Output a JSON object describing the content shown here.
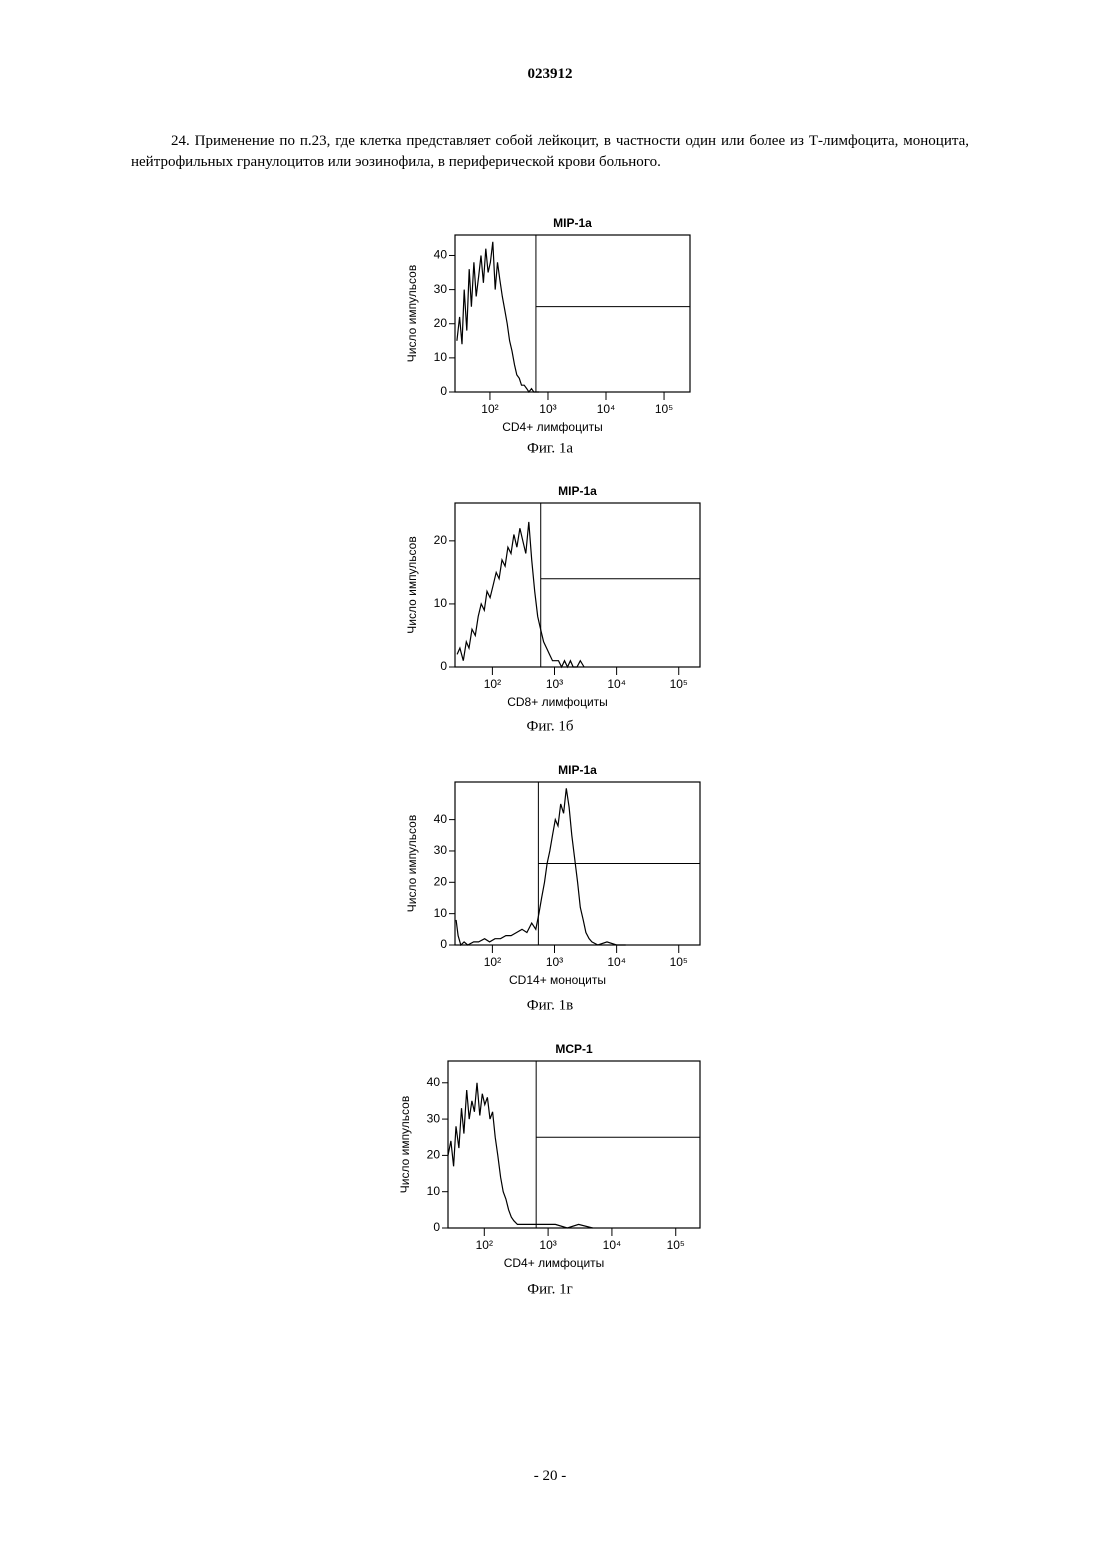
{
  "header": {
    "number": "023912"
  },
  "paragraph": "24. Применение по п.23, где клетка представляет собой лейкоцит, в частности один или более из Т-лимфоцита, моноцита, нейтрофильных гранулоцитов или эозинофила, в периферической крови больного.",
  "chart_data": [
    {
      "type": "line",
      "title": "MIP-1a",
      "x_label": "CD4+ лимфоциты",
      "y_label": "Число импульсов",
      "caption": "Фиг. 1а",
      "x_scale": "log",
      "xlim": [
        25,
        280000
      ],
      "ylim": [
        0,
        46
      ],
      "color": "#000000",
      "xticks": [
        {
          "value": 100,
          "label": "10²"
        },
        {
          "value": 1000,
          "label": "10³"
        },
        {
          "value": 10000,
          "label": "10⁴"
        },
        {
          "value": 100000,
          "label": "10⁵"
        }
      ],
      "yticks": [
        0,
        10,
        20,
        30,
        40
      ],
      "gate": {
        "x": 620,
        "y": 25
      },
      "x": [
        27,
        30,
        33,
        36,
        40,
        44,
        48,
        53,
        58,
        64,
        70,
        77,
        85,
        93,
        102,
        112,
        123,
        135,
        148,
        163,
        180,
        198,
        218,
        240,
        265,
        290,
        320,
        350,
        390,
        430,
        470,
        520,
        570,
        630,
        700
      ],
      "values": [
        15,
        22,
        14,
        30,
        18,
        36,
        25,
        38,
        28,
        34,
        40,
        32,
        42,
        35,
        38,
        44,
        30,
        38,
        33,
        28,
        24,
        20,
        15,
        12,
        8,
        5,
        4,
        2,
        2,
        1,
        0,
        1,
        0,
        0,
        0
      ]
    },
    {
      "type": "line",
      "title": "MIP-1a",
      "x_label": "CD8+ лимфоциты",
      "y_label": "Число импульсов",
      "caption": "Фиг. 1б",
      "x_scale": "log",
      "xlim": [
        25,
        220000
      ],
      "ylim": [
        0,
        26
      ],
      "color": "#000000",
      "xticks": [
        {
          "value": 100,
          "label": "10²"
        },
        {
          "value": 1000,
          "label": "10³"
        },
        {
          "value": 10000,
          "label": "10⁴"
        },
        {
          "value": 100000,
          "label": "10⁵"
        }
      ],
      "yticks": [
        0,
        10,
        20
      ],
      "gate": {
        "x": 600,
        "y": 14
      },
      "x": [
        27,
        30,
        34,
        38,
        42,
        47,
        53,
        59,
        66,
        74,
        82,
        92,
        103,
        115,
        128,
        143,
        160,
        178,
        199,
        222,
        248,
        277,
        309,
        345,
        385,
        430,
        480,
        536,
        598,
        667,
        745,
        830,
        930,
        1040,
        1160,
        1300,
        1450,
        1620,
        1800,
        2000,
        2300,
        2600,
        3000
      ],
      "values": [
        2,
        3,
        1,
        4,
        3,
        6,
        5,
        8,
        10,
        9,
        12,
        11,
        13,
        15,
        14,
        17,
        16,
        19,
        18,
        21,
        19,
        22,
        20,
        18,
        23,
        17,
        12,
        8,
        6,
        4,
        3,
        2,
        1,
        1,
        1,
        0,
        1,
        0,
        1,
        0,
        0,
        1,
        0
      ]
    },
    {
      "type": "line",
      "title": "MIP-1a",
      "x_label": "CD14+ моноциты",
      "y_label": "Число импульсов",
      "caption": "Фиг. 1в",
      "x_scale": "log",
      "xlim": [
        25,
        220000
      ],
      "ylim": [
        0,
        52
      ],
      "color": "#000000",
      "xticks": [
        {
          "value": 100,
          "label": "10²"
        },
        {
          "value": 1000,
          "label": "10³"
        },
        {
          "value": 10000,
          "label": "10⁴"
        },
        {
          "value": 100000,
          "label": "10⁵"
        }
      ],
      "yticks": [
        0,
        10,
        20,
        30,
        40
      ],
      "gate": {
        "x": 550,
        "y": 26
      },
      "x": [
        26,
        28,
        31,
        35,
        40,
        50,
        60,
        75,
        90,
        110,
        135,
        165,
        200,
        245,
        300,
        360,
        430,
        500,
        560,
        620,
        690,
        760,
        840,
        930,
        1030,
        1140,
        1260,
        1400,
        1550,
        1720,
        1900,
        2100,
        2350,
        2600,
        2900,
        3200,
        3600,
        4000,
        5000,
        7000,
        10000,
        14000
      ],
      "values": [
        8,
        3,
        0,
        1,
        0,
        1,
        1,
        2,
        1,
        2,
        2,
        3,
        3,
        4,
        5,
        4,
        7,
        5,
        10,
        15,
        20,
        26,
        30,
        35,
        40,
        38,
        45,
        42,
        50,
        44,
        35,
        28,
        20,
        12,
        8,
        4,
        2,
        1,
        0,
        1,
        0,
        0
      ]
    },
    {
      "type": "line",
      "title": "MCP-1",
      "x_label": "CD4+ лимфоциты",
      "y_label": "Число импульсов",
      "caption": "Фиг. 1г",
      "x_scale": "log",
      "xlim": [
        27,
        240000
      ],
      "ylim": [
        0,
        46
      ],
      "color": "#000000",
      "xticks": [
        {
          "value": 100,
          "label": "10²"
        },
        {
          "value": 1000,
          "label": "10³"
        },
        {
          "value": 10000,
          "label": "10⁴"
        },
        {
          "value": 100000,
          "label": "10⁵"
        }
      ],
      "yticks": [
        0,
        10,
        20,
        30,
        40
      ],
      "gate": {
        "x": 650,
        "y": 25
      },
      "x": [
        27,
        30,
        33,
        36,
        40,
        44,
        48,
        53,
        58,
        64,
        70,
        77,
        85,
        93,
        102,
        112,
        123,
        135,
        148,
        163,
        180,
        198,
        218,
        240,
        265,
        290,
        330,
        400,
        500,
        650,
        900,
        1300,
        2000,
        3000,
        5000
      ],
      "values": [
        20,
        24,
        17,
        28,
        22,
        33,
        26,
        38,
        30,
        35,
        32,
        40,
        31,
        37,
        34,
        36,
        30,
        32,
        25,
        20,
        14,
        10,
        8,
        5,
        3,
        2,
        1,
        1,
        1,
        1,
        1,
        1,
        0,
        1,
        0
      ]
    }
  ],
  "footer": {
    "page": "- 20 -"
  }
}
